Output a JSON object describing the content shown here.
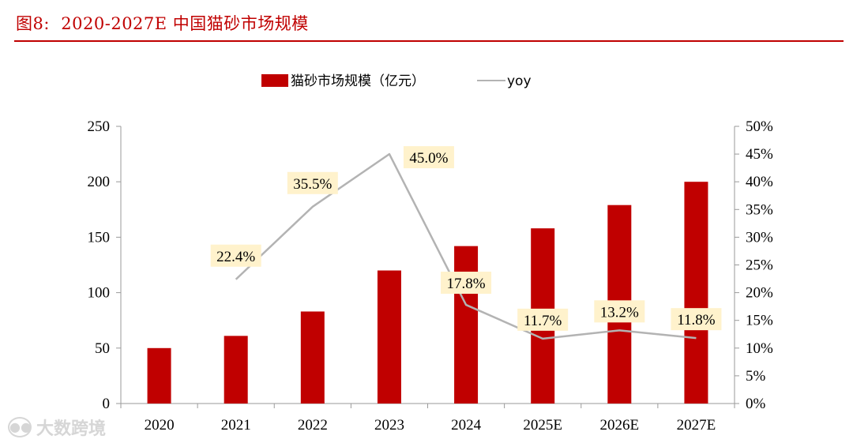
{
  "figure": {
    "label": "图8:",
    "title": "2020-2027E 中国猫砂市场规模"
  },
  "watermark": {
    "text": "大数跨境",
    "icon": "chat-bubble-logo-icon"
  },
  "colors": {
    "accent": "#c00000",
    "bar": "#c00000",
    "line": "#b3b3b3",
    "label_bg": "#fff2cc"
  },
  "chart_data": {
    "type": "bar",
    "categories": [
      "2020",
      "2021",
      "2022",
      "2023",
      "2024",
      "2025E",
      "2026E",
      "2027E"
    ],
    "series": [
      {
        "name": "猫砂市场规模（亿元）",
        "type": "bar",
        "axis": "left",
        "values": [
          50,
          61,
          83,
          120,
          142,
          158,
          179,
          200
        ]
      },
      {
        "name": "yoy",
        "type": "line",
        "axis": "right",
        "values": [
          null,
          22.4,
          35.5,
          45.0,
          17.8,
          11.7,
          13.2,
          11.8
        ]
      }
    ],
    "data_labels": [
      "",
      "22.4%",
      "35.5%",
      "45.0%",
      "17.8%",
      "11.7%",
      "13.2%",
      "11.8%"
    ],
    "y_left": {
      "min": 0,
      "max": 250,
      "ticks": [
        "0",
        "50",
        "100",
        "150",
        "200",
        "250"
      ]
    },
    "y_right": {
      "min": 0,
      "max": 50,
      "ticks": [
        "0%",
        "5%",
        "10%",
        "15%",
        "20%",
        "25%",
        "30%",
        "35%",
        "40%",
        "45%",
        "50%"
      ]
    },
    "legend": {
      "position": "top-center"
    },
    "grid": false
  }
}
